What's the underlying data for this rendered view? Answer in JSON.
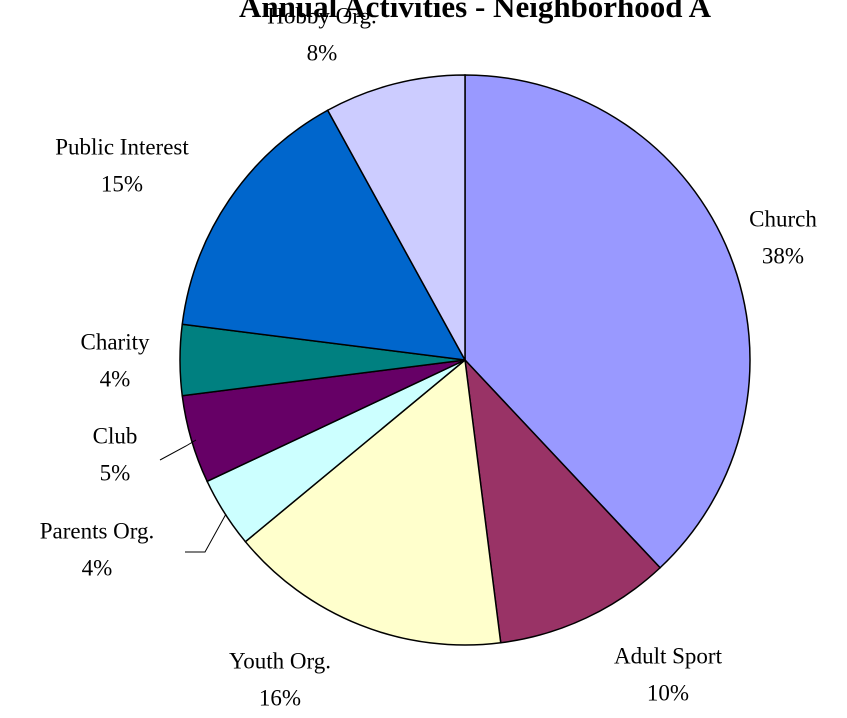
{
  "chart_data": {
    "type": "pie",
    "title": "Annual Activities - Neighborhood A",
    "categories": [
      "Church",
      "Adult Sport",
      "Youth Org.",
      "Parents Org.",
      "Club",
      "Charity",
      "Public Interest",
      "Hobby Org."
    ],
    "values": [
      38,
      10,
      16,
      4,
      5,
      4,
      15,
      8
    ],
    "value_labels": [
      "38%",
      "10%",
      "16%",
      "4%",
      "5%",
      "4%",
      "15%",
      "8%"
    ],
    "colors": [
      "#9999ff",
      "#993366",
      "#ffffcc",
      "#ccffff",
      "#660066",
      "#008080",
      "#0066cc",
      "#ccccff"
    ]
  }
}
